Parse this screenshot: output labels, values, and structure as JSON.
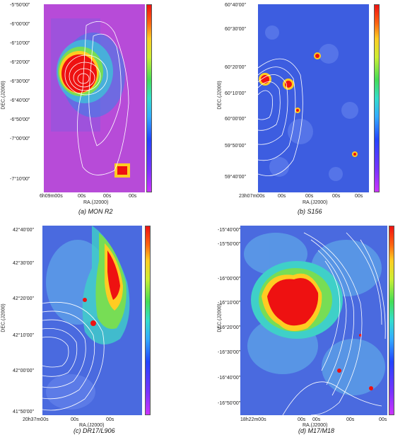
{
  "panels": [
    {
      "id": "a",
      "caption": "(a) MON R2",
      "ylabel": "DEC.(J2000)",
      "xlabel": "RA.(J2000)",
      "yticks": [
        "-5°50'00\"",
        "-6°00'00\"",
        "-6°10'00\"",
        "-6°20'00\"",
        "-6°30'00\"",
        "-6°40'00\"",
        "-6°50'00\"",
        "-7°00'00\"",
        "-7°10'00\""
      ],
      "xticks": [
        "6h09m00s",
        "00s",
        "00s",
        "00s"
      ],
      "colors": {
        "background": "#b74bd8"
      }
    },
    {
      "id": "b",
      "caption": "(b) S156",
      "ylabel": "DEC.(J2000)",
      "xlabel": "RA.(J2000)",
      "yticks": [
        "60°40'00\"",
        "60°30'00\"",
        "60°20'00\"",
        "60°10'00\"",
        "60°00'00\"",
        "59°50'00\"",
        "59°40'00\""
      ],
      "xticks": [
        "23h07m00s",
        "00s",
        "00s",
        "00s",
        "00s"
      ],
      "colors": {
        "background": "#3d5de0"
      }
    },
    {
      "id": "c",
      "caption": "(c) DR17/L906",
      "ylabel": "DEC.(J2000)",
      "xlabel": "RA.(J2000)",
      "yticks": [
        "42°40'00\"",
        "42°30'00\"",
        "42°20'00\"",
        "42°10'00\"",
        "42°00'00\"",
        "41°50'00\""
      ],
      "xticks": [
        "20h37m00s",
        "00s",
        "00s"
      ],
      "colors": {
        "background": "#4a6adf"
      }
    },
    {
      "id": "d",
      "caption": "(d) M17/M18",
      "ylabel": "DEC.(J2000)",
      "xlabel": "RA.(J2000)",
      "yticks": [
        "-15°40'00\"",
        "-15°50'00\"",
        "-16°00'00\"",
        "-16°10'00\"",
        "-16°20'00\"",
        "-16°30'00\"",
        "-16°40'00\"",
        "-16°50'00\""
      ],
      "xticks": [
        "18h22m00s",
        "00s",
        "00s",
        "00s",
        "00s"
      ],
      "colors": {
        "background": "#4a6adf"
      }
    }
  ]
}
